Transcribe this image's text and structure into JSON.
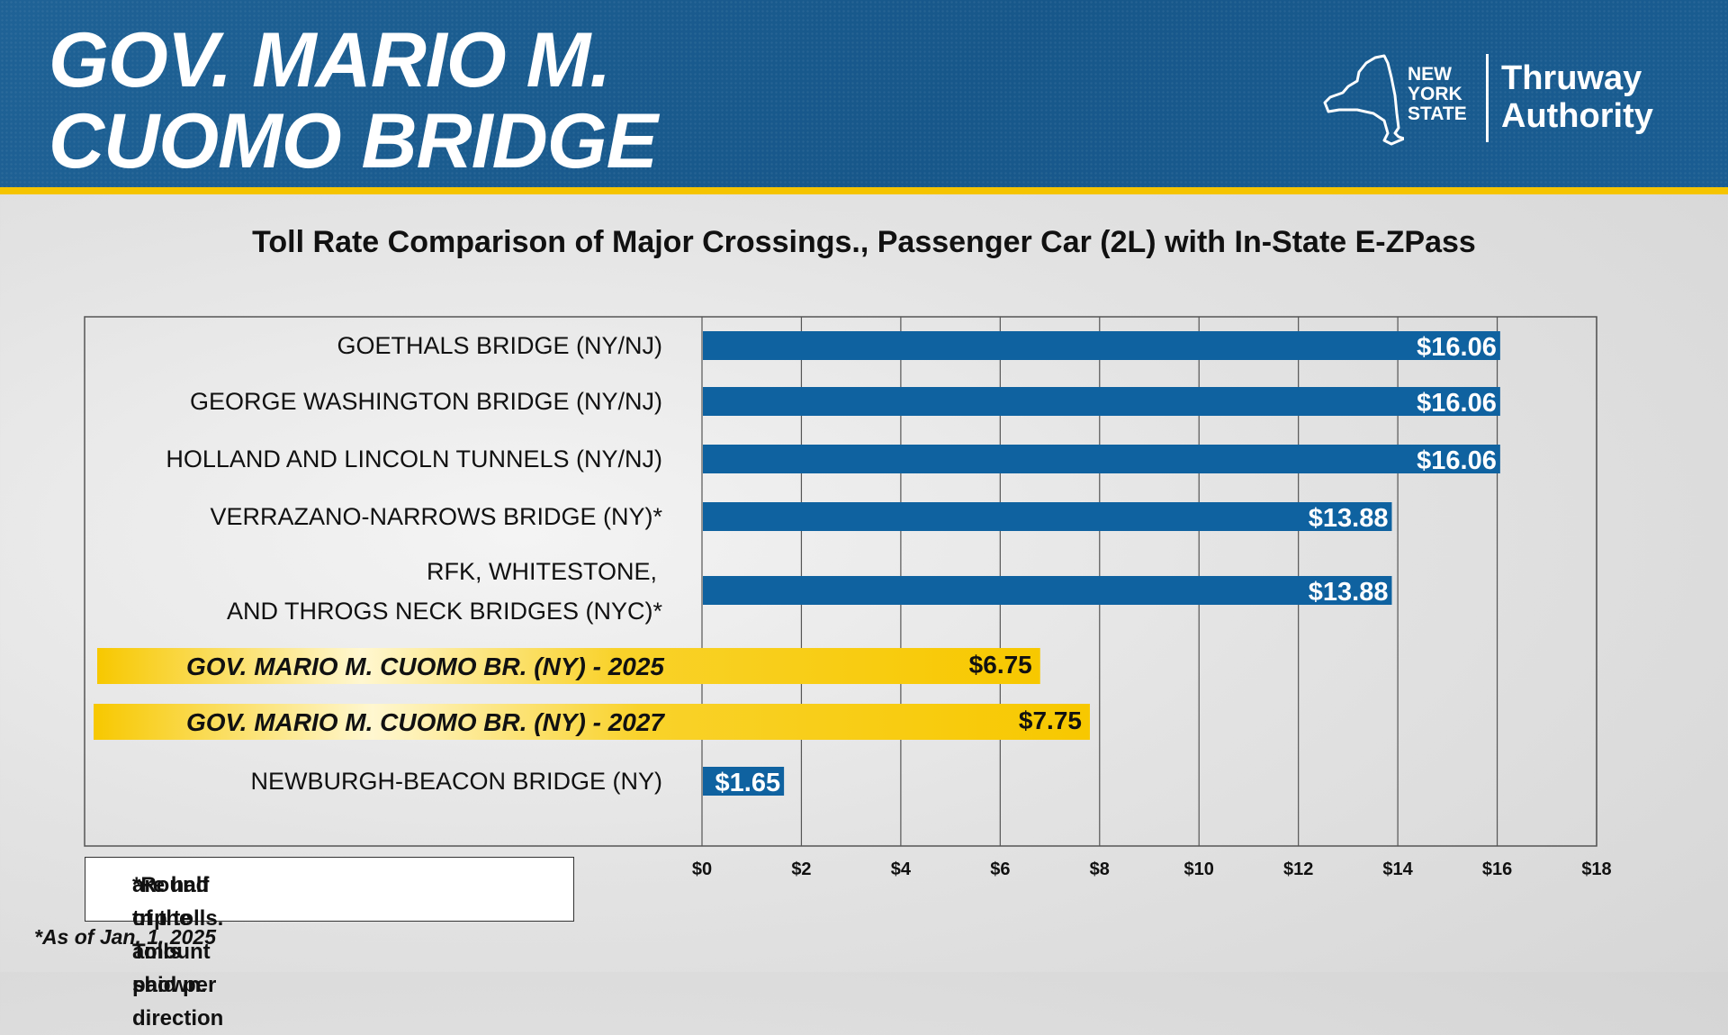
{
  "header": {
    "title_line1": "GOV. MARIO M.",
    "title_line2": "CUOMO BRIDGE",
    "logo_state_lines": [
      "NEW",
      "YORK",
      "STATE"
    ],
    "logo_authority_lines": [
      "Thruway",
      "Authority"
    ]
  },
  "chart_data": {
    "type": "bar",
    "orientation": "horizontal",
    "title": "Toll Rate Comparison of Major Crossings., Passenger Car (2L) with In-State E-ZPass",
    "categories": [
      [
        "GOETHALS BRIDGE (NY/NJ)"
      ],
      [
        "GEORGE WASHINGTON BRIDGE (NY/NJ)"
      ],
      [
        "HOLLAND AND LINCOLN TUNNELS (NY/NJ)"
      ],
      [
        "VERRAZANO-NARROWS BRIDGE (NY)*"
      ],
      [
        "RFK, WHITESTONE,",
        "AND THROGS NECK BRIDGES (NYC)*"
      ],
      [
        "GOV. MARIO M. CUOMO BR. (NY) - 2025"
      ],
      [
        "GOV. MARIO M. CUOMO BR. (NY) - 2027"
      ],
      [
        "NEWBURGH-BEACON BRIDGE (NY)"
      ]
    ],
    "values": [
      16.06,
      16.06,
      16.06,
      13.88,
      13.88,
      6.75,
      7.75,
      1.65
    ],
    "value_labels": [
      "$16.06",
      "$16.06",
      "$16.06",
      "$13.88",
      "$13.88",
      "$6.75",
      "$7.75",
      "$1.65"
    ],
    "highlighted": [
      false,
      false,
      false,
      false,
      false,
      true,
      true,
      false
    ],
    "xlim": [
      0,
      18
    ],
    "x_ticks": [
      0,
      2,
      4,
      6,
      8,
      10,
      12,
      14,
      16,
      18
    ],
    "x_tick_labels": [
      "$0",
      "$2",
      "$4",
      "$6",
      "$8",
      "$10",
      "$12",
      "$14",
      "$16",
      "$18"
    ],
    "grid": true,
    "bar_color": "#0f62a0",
    "highlight_color": "#f7c800"
  },
  "notes": {
    "footnote_lines": [
      "*Round trip tolls. Tolls paid per direction",
      "are half of the amount shown."
    ],
    "as_of": "*As of Jan. 1, 2025"
  }
}
